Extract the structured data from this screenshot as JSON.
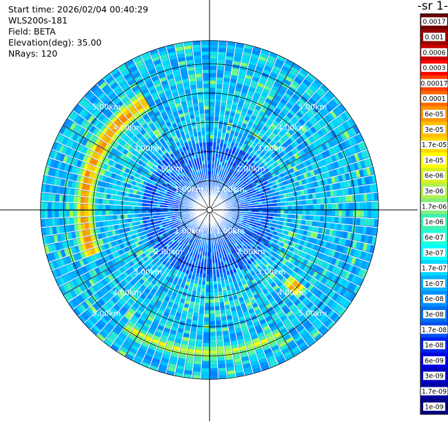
{
  "header": {
    "start_time": "Start time: 2026/02/04 00:40:29",
    "instrument": "WLS200s-181",
    "field": "Field: BETA",
    "elevation": "Elevation(deg): 35.00",
    "nrays": "NRays: 120"
  },
  "colorbar": {
    "title": "-1 sr-",
    "ticks": [
      "0.0017",
      "0.001",
      "0.0006",
      "0.0003",
      "0.00017",
      "0.0001",
      "6e-05",
      "3e-05",
      "1.7e-05",
      "1e-05",
      "6e-06",
      "3e-06",
      "1.7e-06",
      "1e-06",
      "6e-07",
      "3e-07",
      "1.7e-07",
      "1e-07",
      "6e-08",
      "3e-08",
      "1.7e-08",
      "1e-08",
      "6e-09",
      "3e-09",
      "1.7e-09",
      "1e-09"
    ],
    "colors": [
      "#6e0000",
      "#9a0000",
      "#c80000",
      "#ff0000",
      "#ff3c00",
      "#ff6a00",
      "#ff9600",
      "#ffbe00",
      "#ffd700",
      "#ffff00",
      "#d8f020",
      "#b0f050",
      "#80f080",
      "#40f0b0",
      "#20ffd8",
      "#00ffff",
      "#00d8ff",
      "#00b0ff",
      "#0090ff",
      "#0070f0",
      "#0050f0",
      "#0020f0",
      "#0000e0",
      "#0000c0",
      "#0000a0",
      "#000080"
    ]
  },
  "chart_data": {
    "type": "polar-ppi",
    "field": "BETA",
    "nrays": 120,
    "range_rings_km": [
      1,
      2,
      3,
      4,
      5
    ],
    "ring_labels": [
      "1.00km",
      "2.00km",
      "3.00km",
      "4.00km",
      "5.00km"
    ],
    "max_range_km": 5.8,
    "colormap": "jet",
    "features": [
      {
        "name": "high-backscatter arc",
        "azimuth_from_deg": 250,
        "azimuth_to_deg": 330,
        "range_km": 4.3,
        "level": "high"
      },
      {
        "name": "south arc",
        "azimuth_from_deg": 150,
        "azimuth_to_deg": 215,
        "range_km": 4.9,
        "level": "medium"
      },
      {
        "name": "south-east patch",
        "azimuth_from_deg": 128,
        "azimuth_to_deg": 136,
        "range_km": 3.9,
        "level": "high"
      }
    ]
  }
}
